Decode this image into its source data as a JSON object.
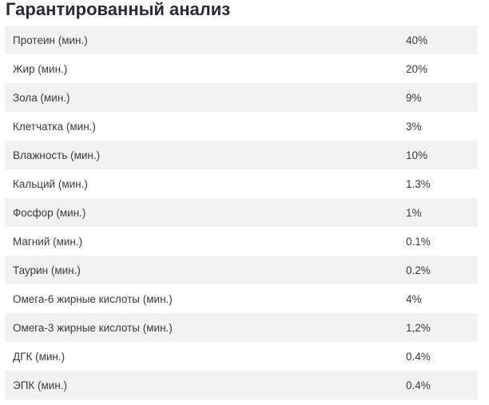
{
  "title": "Гарантированный анализ",
  "rows": [
    {
      "name": "Протеин (мин.)",
      "value": "40%"
    },
    {
      "name": "Жир (мин.)",
      "value": "20%"
    },
    {
      "name": "Зола (мин.)",
      "value": "9%"
    },
    {
      "name": "Клетчатка (мин.)",
      "value": "3%"
    },
    {
      "name": "Влажность (мин.)",
      "value": "10%"
    },
    {
      "name": "Кальций (мин.)",
      "value": "1.3%"
    },
    {
      "name": "Фосфор (мин.)",
      "value": "1%"
    },
    {
      "name": "Магний (мин.)",
      "value": "0.1%"
    },
    {
      "name": "Таурин (мин.)",
      "value": "0.2%"
    },
    {
      "name": "Омега-6 жирные кислоты (мин.)",
      "value": "4%"
    },
    {
      "name": "Омега-3 жирные кислоты (мин.)",
      "value": "1,2%"
    },
    {
      "name": "ДГК (мин.)",
      "value": "0.4%"
    },
    {
      "name": "ЭПК (мин.)",
      "value": "0.4%"
    }
  ]
}
